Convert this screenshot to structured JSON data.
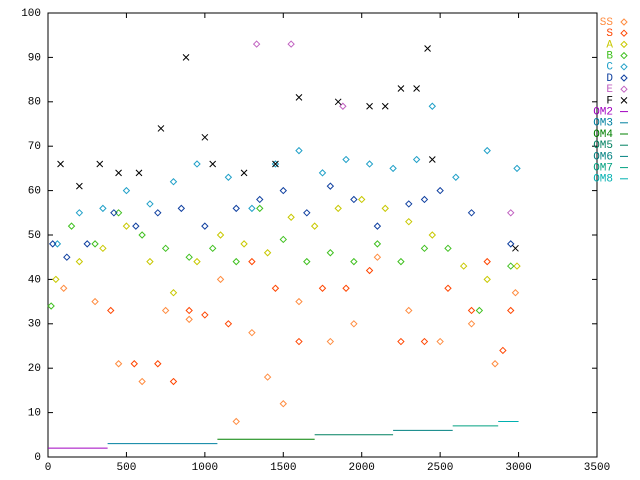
{
  "chart_data": {
    "type": "scatter",
    "xlim": [
      0,
      3500
    ],
    "xticks": [
      0,
      500,
      1000,
      1500,
      2000,
      2500,
      3000,
      3500
    ],
    "ylim": [
      0,
      100
    ],
    "yticks": [
      0,
      10,
      20,
      30,
      40,
      50,
      60,
      70,
      80,
      90,
      100
    ],
    "grid": false,
    "legend": "top-right",
    "series": [
      {
        "name": "SS",
        "color": "#ff8c40",
        "marker": "diamond",
        "x": [
          100,
          300,
          450,
          600,
          750,
          900,
          1100,
          1200,
          1300,
          1400,
          1500,
          1600,
          1800,
          1950,
          2100,
          2300,
          2500,
          2700,
          2850,
          2980
        ],
        "values": [
          38,
          35,
          21,
          17,
          33,
          31,
          40,
          8,
          28,
          18,
          12,
          35,
          26,
          30,
          45,
          33,
          26,
          30,
          21,
          37
        ]
      },
      {
        "name": "S",
        "color": "#ff4500",
        "marker": "diamond",
        "x": [
          400,
          550,
          700,
          800,
          900,
          1000,
          1150,
          1300,
          1450,
          1600,
          1750,
          1900,
          2050,
          2250,
          2400,
          2550,
          2700,
          2800,
          2900,
          2950
        ],
        "values": [
          33,
          21,
          21,
          17,
          33,
          32,
          30,
          44,
          38,
          26,
          38,
          38,
          42,
          26,
          26,
          38,
          33,
          44,
          24,
          33
        ]
      },
      {
        "name": "A",
        "color": "#c8c800",
        "marker": "diamond",
        "x": [
          50,
          200,
          350,
          500,
          650,
          800,
          950,
          1100,
          1250,
          1400,
          1550,
          1700,
          1850,
          2000,
          2150,
          2300,
          2450,
          2650,
          2800,
          2990
        ],
        "values": [
          40,
          44,
          47,
          52,
          44,
          37,
          44,
          50,
          48,
          46,
          54,
          52,
          56,
          58,
          56,
          53,
          50,
          43,
          40,
          43
        ]
      },
      {
        "name": "B",
        "color": "#40c020",
        "marker": "diamond",
        "x": [
          20,
          150,
          300,
          450,
          600,
          750,
          900,
          1050,
          1200,
          1350,
          1500,
          1650,
          1800,
          1950,
          2100,
          2250,
          2400,
          2550,
          2750,
          2950
        ],
        "values": [
          34,
          52,
          48,
          55,
          50,
          47,
          45,
          47,
          44,
          56,
          49,
          44,
          46,
          44,
          48,
          44,
          47,
          47,
          33,
          43
        ]
      },
      {
        "name": "C",
        "color": "#20a0c8",
        "marker": "diamond",
        "x": [
          60,
          200,
          350,
          500,
          650,
          800,
          950,
          1150,
          1300,
          1450,
          1600,
          1750,
          1900,
          2050,
          2200,
          2350,
          2450,
          2600,
          2800,
          2990
        ],
        "values": [
          48,
          55,
          56,
          60,
          57,
          62,
          66,
          63,
          56,
          66,
          69,
          64,
          67,
          66,
          65,
          67,
          79,
          63,
          69,
          65
        ]
      },
      {
        "name": "D",
        "color": "#1040a0",
        "marker": "diamond",
        "x": [
          30,
          120,
          250,
          420,
          560,
          700,
          850,
          1000,
          1200,
          1350,
          1500,
          1650,
          1800,
          1950,
          2100,
          2300,
          2400,
          2500,
          2700,
          2950
        ],
        "values": [
          48,
          45,
          48,
          55,
          52,
          55,
          56,
          52,
          56,
          58,
          60,
          55,
          61,
          58,
          52,
          57,
          58,
          60,
          55,
          48
        ]
      },
      {
        "name": "E",
        "color": "#c060c0",
        "marker": "diamond",
        "x": [
          1330,
          1550,
          1880,
          2950
        ],
        "values": [
          93,
          93,
          79,
          55
        ]
      },
      {
        "name": "F",
        "color": "#000000",
        "marker": "cross",
        "x": [
          80,
          200,
          330,
          450,
          580,
          720,
          880,
          1000,
          1050,
          1250,
          1450,
          1600,
          1850,
          2050,
          2150,
          2250,
          2350,
          2420,
          2450,
          2980
        ],
        "values": [
          66,
          61,
          66,
          64,
          64,
          74,
          90,
          72,
          66,
          64,
          66,
          81,
          80,
          79,
          79,
          83,
          83,
          92,
          67,
          47
        ]
      },
      {
        "name": "OM2",
        "color": "#a000c0",
        "marker": "line",
        "x": [
          0,
          380
        ],
        "values": [
          2,
          2
        ]
      },
      {
        "name": "OM3",
        "color": "#0080a0",
        "marker": "line",
        "x": [
          380,
          1080
        ],
        "values": [
          3,
          3
        ]
      },
      {
        "name": "OM4",
        "color": "#008000",
        "marker": "line",
        "x": [
          1080,
          1700
        ],
        "values": [
          4,
          4
        ]
      },
      {
        "name": "OM5",
        "color": "#008060",
        "marker": "line",
        "x": [
          1700,
          2200
        ],
        "values": [
          5,
          5
        ]
      },
      {
        "name": "OM6",
        "color": "#008080",
        "marker": "line",
        "x": [
          2200,
          2580
        ],
        "values": [
          6,
          6
        ]
      },
      {
        "name": "OM7",
        "color": "#00a080",
        "marker": "line",
        "x": [
          2580,
          2870
        ],
        "values": [
          7,
          7
        ]
      },
      {
        "name": "OM8",
        "color": "#00b0b0",
        "marker": "line",
        "x": [
          2870,
          3000
        ],
        "values": [
          8,
          8
        ]
      }
    ]
  }
}
